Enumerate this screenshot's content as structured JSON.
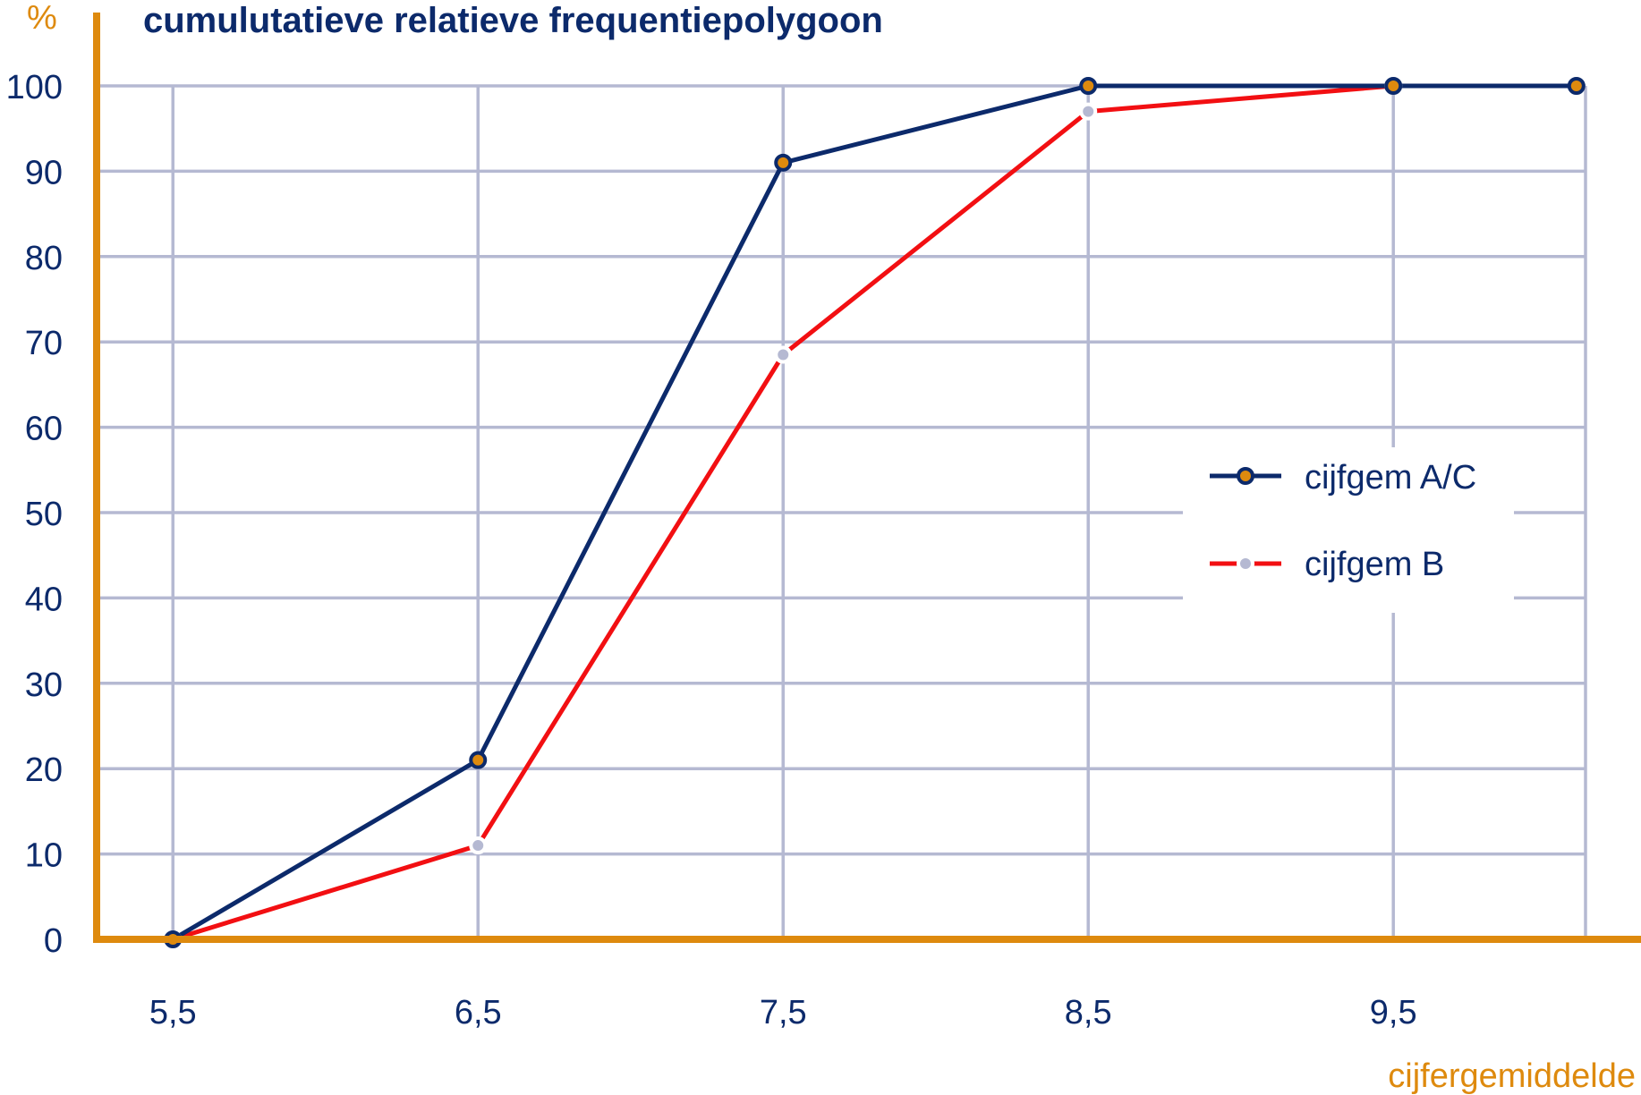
{
  "chart_data": {
    "type": "line",
    "title": "cumulutatieve relatieve frequentiepolygoon",
    "ylabel": "%",
    "xlabel": "cijfergemiddelde",
    "x_ticks": [
      "5,5",
      "6,5",
      "7,5",
      "8,5",
      "9,5"
    ],
    "y_ticks": [
      "0",
      "10",
      "20",
      "30",
      "40",
      "50",
      "60",
      "70",
      "80",
      "90",
      "100"
    ],
    "xlim": [
      5.25,
      10.3
    ],
    "ylim": [
      0,
      100
    ],
    "x": [
      5.5,
      6.5,
      7.5,
      8.5,
      9.5,
      10.1
    ],
    "series": [
      {
        "name": "cijfgem A/C",
        "x": [
          5.5,
          6.5,
          7.5,
          8.5,
          9.5,
          10.1
        ],
        "values": [
          0,
          21,
          91,
          100,
          100,
          100
        ]
      },
      {
        "name": "cijfgem B",
        "x": [
          5.5,
          6.5,
          7.5,
          8.5,
          9.5
        ],
        "values": [
          0,
          11,
          68.5,
          97,
          100
        ]
      }
    ],
    "grid": true,
    "legend_position": "right"
  },
  "colors": {
    "axis": "#DE8A0E",
    "title": "#0C2A6B",
    "tick_text": "#0C2A6B",
    "grid": "#B5B9D2",
    "series_a": "#0C2A6B",
    "series_a_marker_fill": "#DE8A0E",
    "series_b": "#F20F12",
    "series_b_marker_fill": "#B5B9D2"
  }
}
